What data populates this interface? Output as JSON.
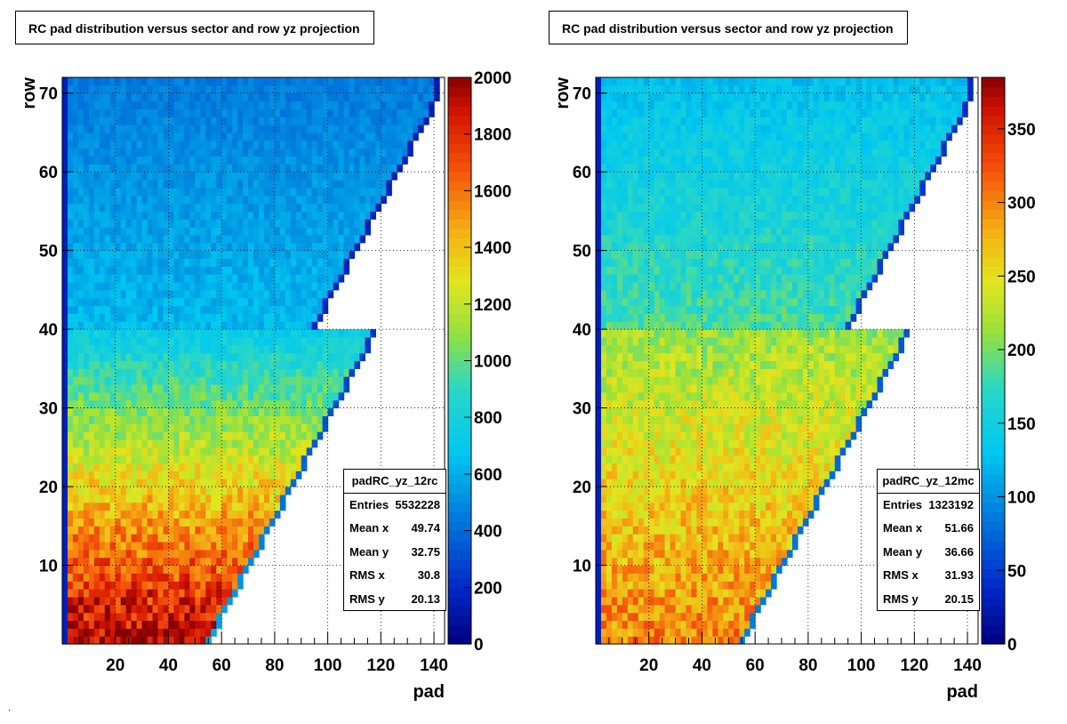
{
  "charts": [
    {
      "title": "RC pad distribution versus sector and row yz projection",
      "stats": {
        "name": "padRC_yz_12rc",
        "rows": [
          {
            "label": "Entries",
            "value": "5532228"
          },
          {
            "label": "Mean x",
            "value": "49.74"
          },
          {
            "label": "Mean y",
            "value": "32.75"
          },
          {
            "label": "RMS x",
            "value": "30.8"
          },
          {
            "label": "RMS y",
            "value": "20.13"
          }
        ]
      }
    },
    {
      "title": "RC pad distribution versus sector and row yz projection",
      "stats": {
        "name": "padRC_yz_12mc",
        "rows": [
          {
            "label": "Entries",
            "value": "1323192"
          },
          {
            "label": "Mean x",
            "value": "51.66"
          },
          {
            "label": "Mean y",
            "value": "36.66"
          },
          {
            "label": "RMS x",
            "value": "31.93"
          },
          {
            "label": "RMS y",
            "value": "20.15"
          }
        ]
      }
    }
  ],
  "chart_data": [
    {
      "type": "heatmap",
      "title": "RC pad distribution versus sector and row yz projection",
      "xlabel": "pad",
      "ylabel": "row",
      "xlim": [
        0,
        144
      ],
      "ylim": [
        0,
        72
      ],
      "xticks": [
        20,
        40,
        60,
        80,
        100,
        120,
        140
      ],
      "yticks": [
        10,
        20,
        30,
        40,
        50,
        60,
        70
      ],
      "grid": true,
      "colorbar": {
        "min": 0,
        "max": 2000,
        "ticks": [
          0,
          200,
          400,
          600,
          800,
          1000,
          1200,
          1400,
          1600,
          1800,
          2000
        ]
      },
      "z_description": {
        "row_1_value": 1950,
        "row_40_value": 750,
        "row_72_value": 450
      }
    },
    {
      "type": "heatmap",
      "title": "RC pad distribution versus sector and row yz projection",
      "xlabel": "pad",
      "ylabel": "row",
      "xlim": [
        0,
        144
      ],
      "ylim": [
        0,
        72
      ],
      "xticks": [
        20,
        40,
        60,
        80,
        100,
        120,
        140
      ],
      "yticks": [
        10,
        20,
        30,
        40,
        50,
        60,
        70
      ],
      "grid": true,
      "colorbar": {
        "min": 0,
        "max": 385,
        "ticks": [
          0,
          50,
          100,
          150,
          200,
          250,
          300,
          350
        ]
      },
      "z_description": {
        "row_1_value": 300,
        "row_40_value": 215,
        "row_72_value": 130
      }
    }
  ]
}
